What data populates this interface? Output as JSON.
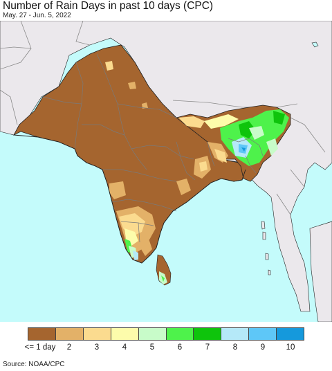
{
  "title": "Number of Rain Days in past 10 days (CPC)",
  "subtitle": "May. 27 - Jun. 5, 2022",
  "source": "Source: NOAA/CPC",
  "colors": {
    "ocean": "#c4fbfb",
    "land_outside": "#ebe8ec",
    "border": "#8a8a8a",
    "coast": "#222222"
  },
  "legend": {
    "labels": [
      "<= 1 day",
      "2",
      "3",
      "4",
      "5",
      "6",
      "7",
      "8",
      "9",
      "10"
    ],
    "colors": [
      "#a5652f",
      "#e3b168",
      "#fbdb8f",
      "#fdfcab",
      "#c8fcc9",
      "#4ef24b",
      "#0ec40c",
      "#b5e9f8",
      "#5ec7f7",
      "#1599dc"
    ]
  }
}
